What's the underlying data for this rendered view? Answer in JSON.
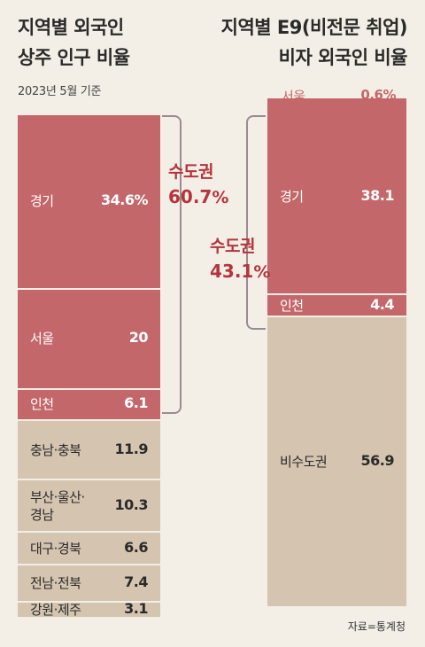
{
  "left": {
    "title_line1": "지역별 외국인",
    "title_line2": "상주 인구 비율",
    "subtitle": "2023년 5월 기준",
    "bracket": {
      "label": "수도권",
      "value": "60.7",
      "unit": "%"
    }
  },
  "right": {
    "title_line1": "지역별 E9(비전문 취업)",
    "title_line2": "비자 외국인 비율",
    "bracket": {
      "label": "수도권",
      "value": "43.1",
      "unit": "%"
    }
  },
  "source": "자료=통계청",
  "colors": {
    "metro": "#c4676a",
    "other": "#d4c4b0",
    "accent": "#b4353c"
  },
  "chart_data": [
    {
      "type": "bar",
      "stacked": true,
      "title": "지역별 외국인 상주 인구 비율",
      "subtitle": "2023년 5월 기준",
      "unit": "%",
      "segments": [
        {
          "label": "경기",
          "value": 34.6,
          "display": "34.6%",
          "group": "metro"
        },
        {
          "label": "서울",
          "value": 20,
          "display": "20",
          "group": "metro"
        },
        {
          "label": "인천",
          "value": 6.1,
          "display": "6.1",
          "group": "metro"
        },
        {
          "label": "충남·충북",
          "value": 11.9,
          "display": "11.9",
          "group": "other"
        },
        {
          "label": "부산·울산·경남",
          "label_lines": [
            "부산·울산·",
            "경남"
          ],
          "value": 10.3,
          "display": "10.3",
          "group": "other"
        },
        {
          "label": "대구·경북",
          "value": 6.6,
          "display": "6.6",
          "group": "other"
        },
        {
          "label": "전남·전북",
          "value": 7.4,
          "display": "7.4",
          "group": "other"
        },
        {
          "label": "강원·제주",
          "value": 3.1,
          "display": "3.1",
          "group": "other"
        }
      ]
    },
    {
      "type": "bar",
      "stacked": true,
      "title": "지역별 E9(비전문 취업) 비자 외국인 비율",
      "unit": "%",
      "segments": [
        {
          "label": "서울",
          "value": 0.6,
          "display": "0.6%",
          "group": "metro",
          "outside": true
        },
        {
          "label": "경기",
          "value": 38.1,
          "display": "38.1",
          "group": "metro"
        },
        {
          "label": "인천",
          "value": 4.4,
          "display": "4.4",
          "group": "metro"
        },
        {
          "label": "비수도권",
          "value": 56.9,
          "display": "56.9",
          "group": "other"
        }
      ]
    }
  ]
}
